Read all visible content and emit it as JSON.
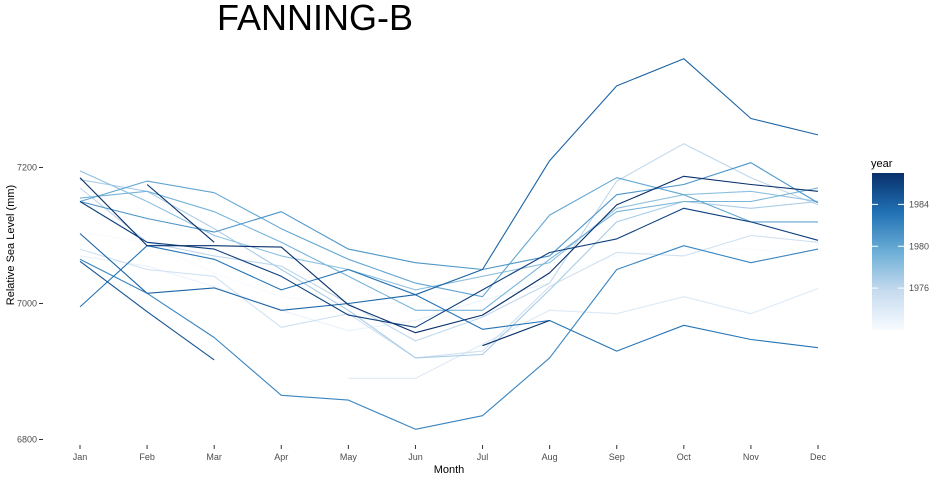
{
  "chart_data": {
    "type": "line",
    "title": "FANNING-B",
    "xlabel": "Month",
    "ylabel": "Relative Sea Level (mm)",
    "categories": [
      "Jan",
      "Feb",
      "Mar",
      "Apr",
      "May",
      "Jun",
      "Jul",
      "Aug",
      "Sep",
      "Oct",
      "Nov",
      "Dec"
    ],
    "ylim": [
      6785,
      7390
    ],
    "yticks": [
      6800,
      7000,
      7200
    ],
    "grid": false,
    "legend": {
      "title": "year",
      "placement": "right",
      "type": "colorbar",
      "range": [
        1972,
        1987
      ],
      "breaks": [
        1976,
        1980,
        1984
      ],
      "low_color": "#f7fbff",
      "high_color": "#08306b"
    },
    "series": [
      {
        "year": 1972,
        "values": [
          7105,
          7090,
          7045,
          7010,
          7000,
          7000,
          7015,
          7040,
          7070,
          7080,
          7080,
          7070
        ]
      },
      {
        "year": 1973,
        "values": [
          7070,
          7055,
          7025,
          6990,
          6960,
          6975,
          7005,
          7030,
          null,
          null,
          null,
          null
        ]
      },
      {
        "year": 1974,
        "values": [
          null,
          null,
          null,
          null,
          6890,
          6890,
          6940,
          6990,
          6985,
          7010,
          6985,
          7022
        ]
      },
      {
        "year": 1975,
        "values": [
          7080,
          7050,
          7040,
          6965,
          6985,
          6920,
          6930,
          7025,
          7075,
          7070,
          7100,
          7090
        ]
      },
      {
        "year": 1976,
        "values": [
          7170,
          7090,
          7070,
          7055,
          7000,
          6945,
          6980,
          7030,
          7180,
          7235,
          7185,
          7145
        ]
      },
      {
        "year": 1977,
        "values": [
          7182,
          7165,
          7110,
          7050,
          6990,
          6920,
          6925,
          7020,
          7120,
          7150,
          7140,
          7150
        ]
      },
      {
        "year": 1978,
        "values": [
          7195,
          7150,
          7100,
          7070,
          7050,
          7020,
          7040,
          7060,
          7140,
          7160,
          7165,
          7150
        ]
      },
      {
        "year": 1979,
        "values": [
          7155,
          7165,
          7135,
          7090,
          7040,
          6990,
          6990,
          7065,
          7135,
          7150,
          7150,
          7170
        ]
      },
      {
        "year": 1980,
        "values": [
          7150,
          7180,
          7163,
          7110,
          7065,
          7030,
          7010,
          7130,
          7185,
          7160,
          7120,
          7120
        ]
      },
      {
        "year": 1981,
        "values": [
          7150,
          7125,
          7105,
          7135,
          7080,
          7060,
          7050,
          7070,
          7160,
          7175,
          7207,
          7148
        ]
      },
      {
        "year": 1982,
        "values": [
          7065,
          7015,
          6950,
          6865,
          6858,
          6815,
          6835,
          6920,
          7050,
          7085,
          7060,
          7080
        ]
      },
      {
        "year": 1983,
        "values": [
          6995,
          7085,
          7065,
          7020,
          7050,
          7013,
          6962,
          6975,
          6930,
          6968,
          6947,
          6935
        ]
      },
      {
        "year": 1984,
        "values": [
          7103,
          7015,
          7023,
          6990,
          7000,
          7013,
          7050,
          7210,
          7320,
          7360,
          7272,
          7248
        ]
      },
      {
        "year": 1985,
        "values": [
          7062,
          6988,
          6917,
          null,
          null,
          null,
          null,
          null,
          null,
          null,
          null,
          null
        ]
      },
      {
        "year": 1986,
        "values": [
          7150,
          7090,
          7080,
          7040,
          6983,
          6965,
          7020,
          7075,
          7095,
          7140,
          7120,
          7093
        ]
      },
      {
        "year": 1987,
        "values": [
          7185,
          7085,
          7085,
          7083,
          6998,
          6957,
          6983,
          7045,
          7145,
          7187,
          7175,
          7165
        ]
      },
      {
        "year": 1987,
        "values": [
          null,
          7175,
          7090,
          null,
          null,
          null,
          6938,
          6975,
          null,
          null,
          null,
          null
        ]
      }
    ]
  }
}
